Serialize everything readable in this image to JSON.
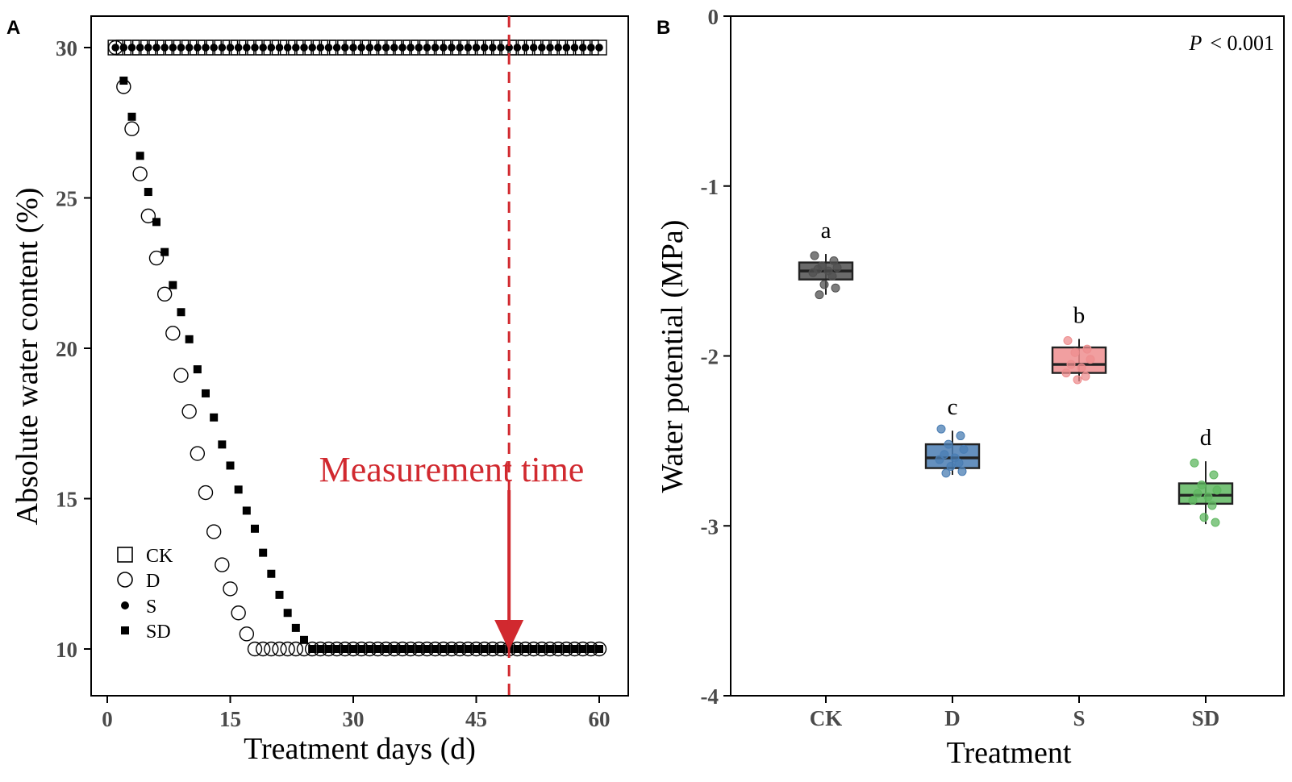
{
  "chart_data": [
    {
      "panel": "A",
      "type": "scatter",
      "xlabel": "Treatment days (d)",
      "ylabel": "Absolute water content (%)",
      "xlim": [
        -1,
        62
      ],
      "ylim": [
        9,
        31
      ],
      "xticks": [
        0,
        15,
        30,
        45,
        60
      ],
      "yticks": [
        10,
        15,
        20,
        25,
        30
      ],
      "legend": {
        "placement": "bottom-left",
        "entries": [
          "CK",
          "D",
          "S",
          "SD"
        ]
      },
      "annotation": {
        "text": "Measurement time",
        "day": 49,
        "arrow_to_value": 10
      },
      "series": [
        {
          "name": "CK",
          "marker": "open-square",
          "x_start": 1,
          "x_end": 60,
          "constant_value": 30
        },
        {
          "name": "D",
          "marker": "open-circle",
          "x": [
            1,
            2,
            3,
            4,
            5,
            6,
            7,
            8,
            9,
            10,
            11,
            12,
            13,
            14,
            15,
            16,
            17,
            18,
            19,
            20,
            21,
            22,
            23,
            24
          ],
          "values": [
            30,
            28.7,
            27.3,
            25.8,
            24.4,
            23,
            21.8,
            20.5,
            19.1,
            17.9,
            16.5,
            15.2,
            13.9,
            12.8,
            12,
            11.2,
            10.5,
            10,
            10,
            10,
            10,
            10,
            10,
            10
          ],
          "tail_value": 10,
          "tail_x_start": 25,
          "tail_x_end": 60
        },
        {
          "name": "S",
          "marker": "filled-circle",
          "x_start": 1,
          "x_end": 60,
          "constant_value": 30
        },
        {
          "name": "SD",
          "marker": "filled-square",
          "x": [
            2,
            3,
            4,
            5,
            6,
            7,
            8,
            9,
            10,
            11,
            12,
            13,
            14,
            15,
            16,
            17,
            18,
            19,
            20,
            21,
            22,
            23,
            24
          ],
          "values": [
            28.9,
            27.7,
            26.4,
            25.2,
            24.2,
            23.2,
            22.1,
            21.2,
            20.3,
            19.3,
            18.5,
            17.7,
            16.8,
            16.1,
            15.3,
            14.6,
            14,
            13.2,
            12.5,
            11.8,
            11.2,
            10.7,
            10.3
          ],
          "tail_value": 10,
          "tail_x_start": 25,
          "tail_x_end": 60
        }
      ]
    },
    {
      "panel": "B",
      "type": "box",
      "xlabel": "Treatment",
      "ylabel": "Water potential (MPa)",
      "ylim": [
        -4,
        0
      ],
      "yticks": [
        0,
        -1,
        -2,
        -3,
        -4
      ],
      "ytick_labels": [
        "0",
        "-1",
        "-2",
        "-3",
        "-4"
      ],
      "p_label": "P",
      "p_value": "< 0.001",
      "categories": [
        "CK",
        "D",
        "S",
        "SD"
      ],
      "boxes": [
        {
          "name": "CK",
          "color": "#505050",
          "median": -1.5,
          "q1": -1.55,
          "q3": -1.45,
          "whisker_low": -1.64,
          "whisker_high": -1.4,
          "letter": "a",
          "points": [
            -1.41,
            -1.44,
            -1.47,
            -1.48,
            -1.49,
            -1.5,
            -1.51,
            -1.53,
            -1.58,
            -1.6,
            -1.64
          ]
        },
        {
          "name": "D",
          "color": "#4a7db3",
          "median": -2.6,
          "q1": -2.66,
          "q3": -2.52,
          "whisker_low": -2.7,
          "whisker_high": -2.44,
          "letter": "c",
          "points": [
            -2.43,
            -2.47,
            -2.52,
            -2.55,
            -2.58,
            -2.6,
            -2.61,
            -2.63,
            -2.65,
            -2.68,
            -2.69
          ]
        },
        {
          "name": "S",
          "color": "#ee8e8f",
          "median": -2.05,
          "q1": -2.1,
          "q3": -1.95,
          "whisker_low": -2.15,
          "whisker_high": -1.9,
          "letter": "b",
          "points": [
            -1.91,
            -1.96,
            -1.98,
            -2.02,
            -2.05,
            -2.07,
            -2.1,
            -2.12,
            -2.14
          ]
        },
        {
          "name": "SD",
          "color": "#5fb760",
          "median": -2.82,
          "q1": -2.87,
          "q3": -2.75,
          "whisker_low": -2.99,
          "whisker_high": -2.62,
          "letter": "d",
          "points": [
            -2.63,
            -2.7,
            -2.76,
            -2.79,
            -2.81,
            -2.83,
            -2.85,
            -2.88,
            -2.95,
            -2.98
          ]
        }
      ]
    }
  ],
  "panels": {
    "a_letter": "A",
    "b_letter": "B"
  },
  "colors": {
    "annotation": "#d1292f",
    "axis": "#000000",
    "tick_text": "#4a4a4a"
  }
}
